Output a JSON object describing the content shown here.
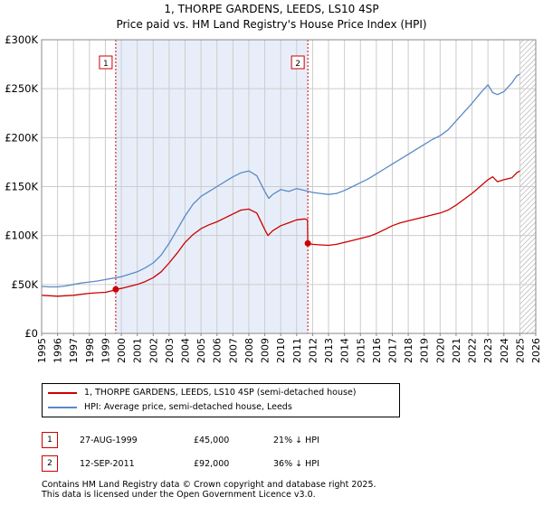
{
  "title": "1, THORPE GARDENS, LEEDS, LS10 4SP",
  "subtitle": "Price paid vs. HM Land Registry's House Price Index (HPI)",
  "chart_data": {
    "type": "line",
    "xlim": [
      1995,
      2026
    ],
    "ylim": [
      0,
      300000
    ],
    "x_ticks": [
      "1995",
      "1996",
      "1997",
      "1998",
      "1999",
      "2000",
      "2001",
      "2002",
      "2003",
      "2004",
      "2005",
      "2006",
      "2007",
      "2008",
      "2009",
      "2010",
      "2011",
      "2012",
      "2013",
      "2014",
      "2015",
      "2016",
      "2017",
      "2018",
      "2019",
      "2020",
      "2021",
      "2022",
      "2023",
      "2024",
      "2025",
      "2026"
    ],
    "y_ticks": [
      {
        "value": 0,
        "label": "£0"
      },
      {
        "value": 50000,
        "label": "£50K"
      },
      {
        "value": 100000,
        "label": "£100K"
      },
      {
        "value": 150000,
        "label": "£150K"
      },
      {
        "value": 200000,
        "label": "£200K"
      },
      {
        "value": 250000,
        "label": "£250K"
      },
      {
        "value": 300000,
        "label": "£300K"
      }
    ],
    "shaded_period": [
      1999.65,
      2011.7
    ],
    "future_hatch_from": 2025.0,
    "series": [
      {
        "name": "1, THORPE GARDENS, LEEDS, LS10 4SP (semi-detached house)",
        "color": "#cc0000",
        "x": [
          1995.0,
          1995.5,
          1996.0,
          1996.5,
          1997.0,
          1997.5,
          1998.0,
          1998.5,
          1999.0,
          1999.4,
          1999.65,
          2000.0,
          2000.5,
          2001.0,
          2001.5,
          2002.0,
          2002.5,
          2003.0,
          2003.5,
          2004.0,
          2004.5,
          2005.0,
          2005.5,
          2006.0,
          2006.5,
          2007.0,
          2007.5,
          2008.0,
          2008.5,
          2009.0,
          2009.2,
          2009.5,
          2010.0,
          2010.5,
          2011.0,
          2011.5,
          2011.68,
          2011.7,
          2012.0,
          2012.5,
          2013.0,
          2013.5,
          2014.0,
          2014.5,
          2015.0,
          2015.5,
          2016.0,
          2016.5,
          2017.0,
          2017.5,
          2018.0,
          2018.5,
          2019.0,
          2019.5,
          2020.0,
          2020.5,
          2021.0,
          2021.5,
          2022.0,
          2022.5,
          2023.0,
          2023.3,
          2023.6,
          2024.0,
          2024.5,
          2024.8,
          2025.0
        ],
        "values": [
          39000,
          38500,
          38000,
          38500,
          39000,
          40000,
          41000,
          41500,
          42000,
          43500,
          45000,
          46000,
          48000,
          50000,
          53000,
          57000,
          63000,
          72000,
          82000,
          93000,
          101000,
          107000,
          111000,
          114000,
          118000,
          122000,
          126000,
          127000,
          123000,
          106000,
          100000,
          105000,
          110000,
          113000,
          116000,
          117000,
          116000,
          92000,
          91000,
          90500,
          90000,
          91000,
          93000,
          95000,
          97000,
          99000,
          102000,
          106000,
          110000,
          113000,
          115000,
          117000,
          119000,
          121000,
          123000,
          126000,
          131000,
          137000,
          143000,
          150000,
          157000,
          160000,
          155000,
          157000,
          159000,
          164000,
          166000
        ]
      },
      {
        "name": "HPI: Average price, semi-detached house, Leeds",
        "color": "#5b8ac6",
        "x": [
          1995.0,
          1995.5,
          1996.0,
          1996.5,
          1997.0,
          1997.5,
          1998.0,
          1998.5,
          1999.0,
          1999.5,
          2000.0,
          2000.5,
          2001.0,
          2001.5,
          2002.0,
          2002.5,
          2003.0,
          2003.5,
          2004.0,
          2004.5,
          2005.0,
          2005.5,
          2006.0,
          2006.5,
          2007.0,
          2007.5,
          2008.0,
          2008.5,
          2009.0,
          2009.25,
          2009.5,
          2010.0,
          2010.5,
          2011.0,
          2011.5,
          2012.0,
          2012.5,
          2013.0,
          2013.5,
          2014.0,
          2014.5,
          2015.0,
          2015.5,
          2016.0,
          2016.5,
          2017.0,
          2017.5,
          2018.0,
          2018.5,
          2019.0,
          2019.5,
          2020.0,
          2020.5,
          2021.0,
          2021.5,
          2022.0,
          2022.5,
          2023.0,
          2023.3,
          2023.6,
          2024.0,
          2024.5,
          2024.8,
          2025.0
        ],
        "values": [
          48000,
          47500,
          47500,
          48500,
          50000,
          51500,
          52500,
          53500,
          55000,
          56500,
          58000,
          60500,
          63000,
          67000,
          72000,
          80000,
          92000,
          106000,
          120000,
          132000,
          140000,
          145000,
          150000,
          155000,
          160000,
          164000,
          166000,
          161000,
          145000,
          138000,
          142000,
          147000,
          145000,
          148000,
          146000,
          144000,
          143000,
          142000,
          143000,
          146000,
          150000,
          154000,
          158000,
          163000,
          168000,
          173000,
          178000,
          183000,
          188000,
          193000,
          198000,
          202000,
          208000,
          217000,
          226000,
          235000,
          245000,
          254000,
          246000,
          244000,
          247000,
          256000,
          263000,
          265000
        ]
      }
    ],
    "sales": [
      {
        "n": "1",
        "x": 1999.65,
        "value": 45000
      },
      {
        "n": "2",
        "x": 2011.7,
        "value": 92000
      }
    ]
  },
  "legend": {
    "red": "1, THORPE GARDENS, LEEDS, LS10 4SP (semi-detached house)",
    "blue": "HPI: Average price, semi-detached house, Leeds"
  },
  "transactions": [
    {
      "n": "1",
      "date": "27-AUG-1999",
      "price": "£45,000",
      "hpi": "21% ↓ HPI"
    },
    {
      "n": "2",
      "date": "12-SEP-2011",
      "price": "£92,000",
      "hpi": "36% ↓ HPI"
    }
  ],
  "footer": {
    "line1": "Contains HM Land Registry data © Crown copyright and database right 2025.",
    "line2": "This data is licensed under the Open Government Licence v3.0."
  },
  "colors": {
    "red": "#cc0000",
    "blue": "#5b8ac6",
    "shade": "#e8eef9",
    "grid": "#cccccc"
  }
}
